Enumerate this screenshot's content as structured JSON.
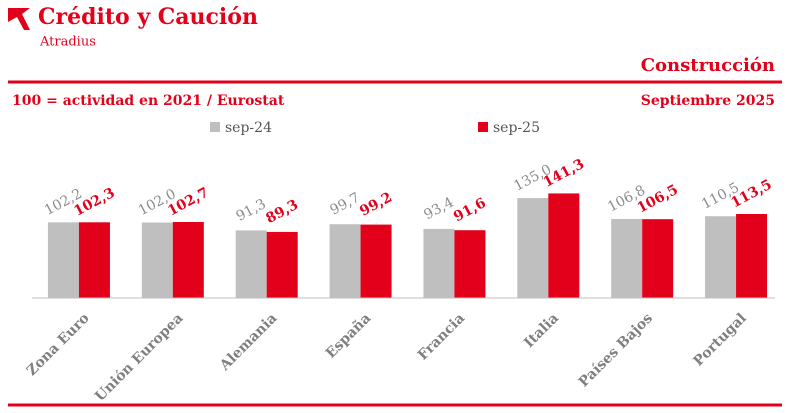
{
  "header": {
    "brand": "Crédito y Caución",
    "sub_brand": "Atradius"
  },
  "chart_data": {
    "type": "bar",
    "title": "Construcción",
    "subtitle": "100 = actividad en 2021 / Eurostat",
    "date": "Septiembre 2025",
    "categories": [
      "Zona Euro",
      "Unión Europea",
      "Alemania",
      "España",
      "Francia",
      "Italia",
      "Países Bajos",
      "Portugal"
    ],
    "series": [
      {
        "name": "sep-24",
        "color": "#bfbfbf",
        "label_color": "#8c8c8c",
        "values": [
          102.2,
          102.0,
          91.3,
          99.7,
          93.4,
          135.0,
          106.8,
          110.5
        ],
        "value_labels": [
          "102,2",
          "102,0",
          "91,3",
          "99,7",
          "93,4",
          "135,0",
          "106,8",
          "110,5"
        ]
      },
      {
        "name": "sep-25",
        "color": "#e2001a",
        "label_color": "#e2001a",
        "values": [
          102.3,
          102.7,
          89.3,
          99.2,
          91.6,
          141.3,
          106.5,
          113.5
        ],
        "value_labels": [
          "102,3",
          "102,7",
          "89,3",
          "99,2",
          "91,6",
          "141,3",
          "106,5",
          "113,5"
        ]
      }
    ],
    "ylim": [
      0,
      200
    ],
    "grid": false
  }
}
